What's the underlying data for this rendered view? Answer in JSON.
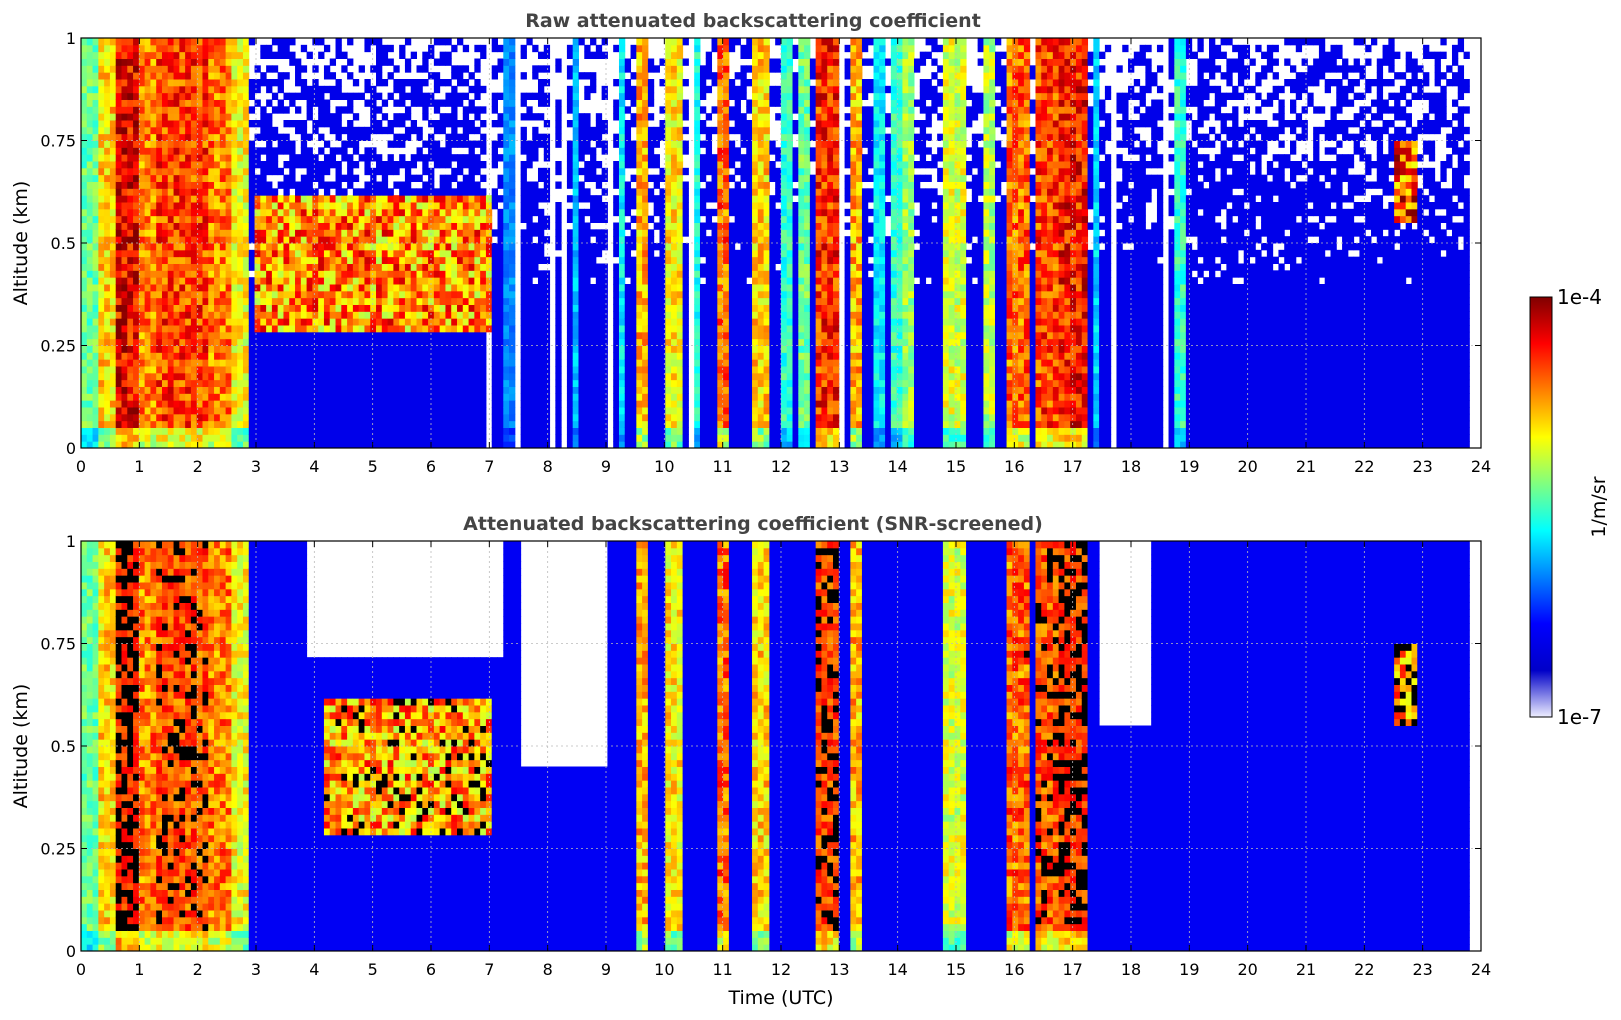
{
  "chart_data": [
    {
      "type": "heatmap",
      "title": "Raw attenuated backscattering coefficient",
      "ylabel": "Altitude (km)",
      "xlabel": "",
      "xlim": [
        0,
        24
      ],
      "ylim": [
        0,
        1
      ],
      "x_ticks": [
        "0",
        "1",
        "2",
        "3",
        "4",
        "5",
        "6",
        "7",
        "8",
        "9",
        "10",
        "11",
        "12",
        "13",
        "14",
        "15",
        "16",
        "17",
        "18",
        "19",
        "20",
        "21",
        "22",
        "23",
        "24"
      ],
      "y_ticks": [
        "0",
        "0.25",
        "0.5",
        "0.75",
        "1"
      ],
      "grid": true,
      "background_level": 0.18,
      "data_end_hour": 23.8,
      "features": [
        {
          "type": "column",
          "x0": 0.0,
          "x1": 0.3,
          "level": 0.55
        },
        {
          "type": "column",
          "x0": 0.3,
          "x1": 0.55,
          "level": 0.72
        },
        {
          "type": "column",
          "x0": 0.6,
          "x1": 1.0,
          "level": 0.93
        },
        {
          "type": "column",
          "x0": 1.0,
          "x1": 1.3,
          "level": 0.8
        },
        {
          "type": "column",
          "x0": 1.3,
          "x1": 2.2,
          "level": 0.86
        },
        {
          "type": "column",
          "x0": 2.2,
          "x1": 2.6,
          "level": 0.8
        },
        {
          "type": "column",
          "x0": 2.6,
          "x1": 2.9,
          "level": 0.68
        },
        {
          "type": "layer",
          "x0": 3.0,
          "x1": 7.0,
          "y0": 0.28,
          "y1": 0.62,
          "level": 0.85
        },
        {
          "type": "column",
          "x0": 7.2,
          "x1": 7.4,
          "level": 0.35
        },
        {
          "type": "column",
          "x0": 8.4,
          "x1": 8.55,
          "level": 0.4
        },
        {
          "type": "column",
          "x0": 9.2,
          "x1": 9.35,
          "level": 0.45
        },
        {
          "type": "column",
          "x0": 9.5,
          "x1": 9.75,
          "level": 0.75
        },
        {
          "type": "column",
          "x0": 10.0,
          "x1": 10.35,
          "level": 0.7
        },
        {
          "type": "column",
          "x0": 10.5,
          "x1": 10.6,
          "level": 0.48
        },
        {
          "type": "column",
          "x0": 10.95,
          "x1": 11.15,
          "level": 0.82
        },
        {
          "type": "column",
          "x0": 11.5,
          "x1": 11.8,
          "level": 0.72
        },
        {
          "type": "column",
          "x0": 12.0,
          "x1": 12.15,
          "level": 0.5
        },
        {
          "type": "column",
          "x0": 12.3,
          "x1": 12.45,
          "level": 0.55
        },
        {
          "type": "column",
          "x0": 12.6,
          "x1": 12.95,
          "level": 0.88
        },
        {
          "type": "column",
          "x0": 13.2,
          "x1": 13.4,
          "level": 0.75
        },
        {
          "type": "column",
          "x0": 13.6,
          "x1": 13.75,
          "level": 0.45
        },
        {
          "type": "column",
          "x0": 13.9,
          "x1": 14.05,
          "level": 0.5
        },
        {
          "type": "column",
          "x0": 14.1,
          "x1": 14.3,
          "level": 0.6
        },
        {
          "type": "column",
          "x0": 14.8,
          "x1": 15.2,
          "level": 0.65
        },
        {
          "type": "column",
          "x0": 15.5,
          "x1": 15.7,
          "level": 0.62
        },
        {
          "type": "column",
          "x0": 15.9,
          "x1": 16.3,
          "level": 0.82
        },
        {
          "type": "column",
          "x0": 16.4,
          "x1": 16.75,
          "level": 0.86
        },
        {
          "type": "column",
          "x0": 16.8,
          "x1": 17.3,
          "level": 0.9
        },
        {
          "type": "column",
          "x0": 17.4,
          "x1": 17.5,
          "level": 0.42
        },
        {
          "type": "column",
          "x0": 18.7,
          "x1": 18.9,
          "level": 0.5
        },
        {
          "type": "layer",
          "x0": 22.5,
          "x1": 22.9,
          "y0": 0.55,
          "y1": 0.75,
          "level": 0.92
        }
      ],
      "gaps": [
        {
          "x0": 6.95,
          "x1": 7.05
        },
        {
          "x0": 7.45,
          "x1": 7.55
        },
        {
          "x0": 8.0,
          "x1": 8.15
        },
        {
          "x0": 8.25,
          "x1": 8.35
        },
        {
          "x0": 9.0,
          "x1": 9.1
        },
        {
          "x0": 10.45,
          "x1": 10.5
        },
        {
          "x0": 11.3,
          "x1": 11.35
        },
        {
          "x0": 13.0,
          "x1": 13.05
        },
        {
          "x0": 17.7,
          "x1": 17.8
        },
        {
          "x0": 18.0,
          "x1": 18.05
        },
        {
          "x0": 18.55,
          "x1": 18.65
        }
      ]
    },
    {
      "type": "heatmap",
      "title": "Attenuated backscattering coefficient (SNR-screened)",
      "ylabel": "Altitude (km)",
      "xlabel": "Time (UTC)",
      "xlim": [
        0,
        24
      ],
      "ylim": [
        0,
        1
      ],
      "x_ticks": [
        "0",
        "1",
        "2",
        "3",
        "4",
        "5",
        "6",
        "7",
        "8",
        "9",
        "10",
        "11",
        "12",
        "13",
        "14",
        "15",
        "16",
        "17",
        "18",
        "19",
        "20",
        "21",
        "22",
        "23",
        "24"
      ],
      "y_ticks": [
        "0",
        "0.25",
        "0.5",
        "0.75",
        "1"
      ],
      "grid": true,
      "background_level": 0.2,
      "data_end_hour": 23.8,
      "screened": true,
      "features": [
        {
          "type": "column",
          "x0": 0.0,
          "x1": 0.3,
          "level": 0.55
        },
        {
          "type": "column",
          "x0": 0.3,
          "x1": 0.55,
          "level": 0.72
        },
        {
          "type": "column",
          "x0": 0.6,
          "x1": 1.0,
          "level": 0.93
        },
        {
          "type": "column",
          "x0": 1.0,
          "x1": 1.3,
          "level": 0.8
        },
        {
          "type": "column",
          "x0": 1.3,
          "x1": 2.2,
          "level": 0.86
        },
        {
          "type": "column",
          "x0": 2.2,
          "x1": 2.6,
          "level": 0.8
        },
        {
          "type": "column",
          "x0": 2.6,
          "x1": 2.9,
          "level": 0.68
        },
        {
          "type": "layer",
          "x0": 4.2,
          "x1": 7.0,
          "y0": 0.28,
          "y1": 0.62,
          "level": 0.85
        },
        {
          "type": "column",
          "x0": 9.5,
          "x1": 9.75,
          "level": 0.75
        },
        {
          "type": "column",
          "x0": 10.0,
          "x1": 10.35,
          "level": 0.7
        },
        {
          "type": "column",
          "x0": 10.95,
          "x1": 11.15,
          "level": 0.82
        },
        {
          "type": "column",
          "x0": 11.5,
          "x1": 11.8,
          "level": 0.72
        },
        {
          "type": "column",
          "x0": 12.6,
          "x1": 12.95,
          "level": 0.88
        },
        {
          "type": "column",
          "x0": 13.2,
          "x1": 13.4,
          "level": 0.75
        },
        {
          "type": "column",
          "x0": 14.8,
          "x1": 15.2,
          "level": 0.65
        },
        {
          "type": "column",
          "x0": 15.9,
          "x1": 16.3,
          "level": 0.82
        },
        {
          "type": "column",
          "x0": 16.4,
          "x1": 16.75,
          "level": 0.86
        },
        {
          "type": "column",
          "x0": 16.8,
          "x1": 17.3,
          "level": 0.9
        },
        {
          "type": "layer",
          "x0": 22.5,
          "x1": 22.9,
          "y0": 0.55,
          "y1": 0.75,
          "level": 0.92
        }
      ],
      "blank_regions": [
        {
          "x0": 3.9,
          "x1": 7.2,
          "y0": 0.72,
          "y1": 1.0
        },
        {
          "x0": 7.5,
          "x1": 9.0,
          "y0": 0.45,
          "y1": 1.0
        },
        {
          "x0": 17.5,
          "x1": 18.3,
          "y0": 0.55,
          "y1": 1.0
        }
      ]
    }
  ],
  "colorbar": {
    "label": "1/m/sr",
    "max_label": "1e-4",
    "min_label": "1e-7",
    "colors": [
      "#eeeeff",
      "#0000c8",
      "#0000ff",
      "#0080ff",
      "#00ffff",
      "#80ff80",
      "#ffff00",
      "#ff8000",
      "#ff0000",
      "#800000"
    ]
  }
}
